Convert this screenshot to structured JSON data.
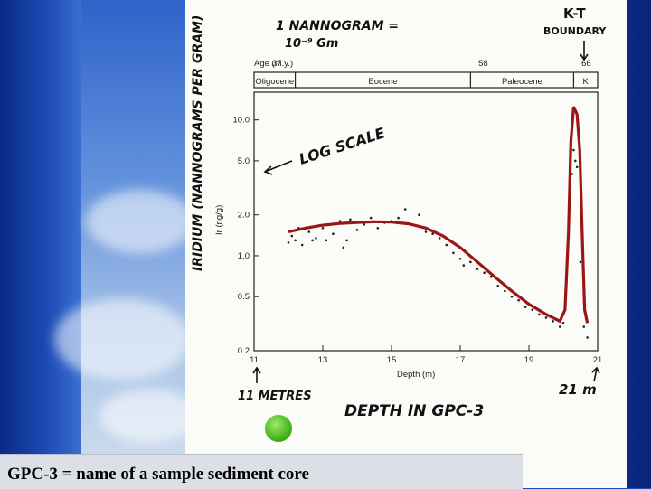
{
  "caption": "GPC-3 = name of a sample sediment core",
  "annotations": {
    "unit_note_line1": "1 NANNOGRAM =",
    "unit_note_line2": "10⁻⁹ Gm",
    "kt_line1": "K-T",
    "kt_line2": "BOUNDARY",
    "iridium_label": "IRIDIUM (NANNOGRAMS PER GRAM)",
    "log_scale": "LOG SCALE",
    "left_depth": "11 METRES",
    "right_depth": "21 m",
    "depth_title": "DEPTH IN GPC-3"
  },
  "chart_data": {
    "type": "scatter",
    "title": "",
    "xlabel": "Depth (m)",
    "ylabel": "Ir (ng/g)",
    "x_ticks": [
      "11",
      "13",
      "15",
      "17",
      "19",
      "21"
    ],
    "y_ticks": [
      "0.2",
      "0.5",
      "1.0",
      "2.0",
      "5.0",
      "10.0"
    ],
    "xlim": [
      11,
      21
    ],
    "ylim": [
      0.2,
      16
    ],
    "yscale": "log",
    "age_axis_label": "Age (m.y.)",
    "age_ticks": [
      {
        "label": "37",
        "depth": 11.3
      },
      {
        "label": "58",
        "depth": 17.3
      },
      {
        "label": "66",
        "depth": 20.3
      }
    ],
    "epochs": [
      {
        "name": "Oligocene",
        "from": 11,
        "to": 12.2
      },
      {
        "name": "Eocene",
        "from": 12.2,
        "to": 17.3
      },
      {
        "name": "Paleocene",
        "from": 17.3,
        "to": 20.3
      },
      {
        "name": "K",
        "from": 20.3,
        "to": 21
      }
    ],
    "points": [
      [
        12.0,
        1.25
      ],
      [
        12.1,
        1.4
      ],
      [
        12.2,
        1.3
      ],
      [
        12.3,
        1.6
      ],
      [
        12.4,
        1.2
      ],
      [
        12.6,
        1.5
      ],
      [
        12.7,
        1.3
      ],
      [
        12.8,
        1.35
      ],
      [
        13.0,
        1.6
      ],
      [
        13.1,
        1.3
      ],
      [
        13.2,
        1.7
      ],
      [
        13.3,
        1.45
      ],
      [
        13.5,
        1.8
      ],
      [
        13.6,
        1.15
      ],
      [
        13.7,
        1.3
      ],
      [
        13.8,
        1.85
      ],
      [
        14.0,
        1.55
      ],
      [
        14.2,
        1.7
      ],
      [
        14.4,
        1.9
      ],
      [
        14.6,
        1.6
      ],
      [
        14.8,
        1.75
      ],
      [
        15.0,
        1.8
      ],
      [
        15.2,
        1.9
      ],
      [
        15.4,
        2.2
      ],
      [
        15.6,
        1.7
      ],
      [
        15.8,
        2.0
      ],
      [
        16.0,
        1.5
      ],
      [
        16.2,
        1.45
      ],
      [
        16.4,
        1.35
      ],
      [
        16.6,
        1.2
      ],
      [
        16.8,
        1.05
      ],
      [
        17.0,
        0.95
      ],
      [
        17.1,
        0.85
      ],
      [
        17.3,
        0.9
      ],
      [
        17.5,
        0.8
      ],
      [
        17.7,
        0.75
      ],
      [
        17.9,
        0.7
      ],
      [
        18.1,
        0.6
      ],
      [
        18.3,
        0.55
      ],
      [
        18.5,
        0.5
      ],
      [
        18.7,
        0.47
      ],
      [
        18.9,
        0.42
      ],
      [
        19.1,
        0.4
      ],
      [
        19.3,
        0.37
      ],
      [
        19.5,
        0.35
      ],
      [
        19.7,
        0.33
      ],
      [
        19.9,
        0.3
      ],
      [
        20.0,
        0.32
      ],
      [
        20.15,
        1.5
      ],
      [
        20.25,
        4.0
      ],
      [
        20.3,
        6.0
      ],
      [
        20.35,
        5.0
      ],
      [
        20.4,
        4.5
      ],
      [
        20.5,
        0.9
      ],
      [
        20.6,
        0.3
      ],
      [
        20.7,
        0.25
      ]
    ],
    "fit_curve": [
      [
        12.0,
        1.5
      ],
      [
        12.5,
        1.6
      ],
      [
        13.0,
        1.68
      ],
      [
        13.5,
        1.73
      ],
      [
        14.0,
        1.76
      ],
      [
        14.5,
        1.78
      ],
      [
        15.0,
        1.77
      ],
      [
        15.5,
        1.72
      ],
      [
        16.0,
        1.6
      ],
      [
        16.5,
        1.4
      ],
      [
        17.0,
        1.15
      ],
      [
        17.5,
        0.9
      ],
      [
        18.0,
        0.7
      ],
      [
        18.5,
        0.55
      ],
      [
        19.0,
        0.44
      ],
      [
        19.5,
        0.37
      ],
      [
        19.9,
        0.33
      ],
      [
        20.05,
        0.4
      ],
      [
        20.15,
        1.5
      ],
      [
        20.22,
        7.0
      ],
      [
        20.3,
        12.5
      ],
      [
        20.4,
        11.0
      ],
      [
        20.48,
        6.0
      ],
      [
        20.56,
        1.2
      ],
      [
        20.62,
        0.4
      ],
      [
        20.7,
        0.32
      ]
    ],
    "colors": {
      "fit": "#9b1515",
      "points": "#222222",
      "frame": "#222222"
    }
  }
}
